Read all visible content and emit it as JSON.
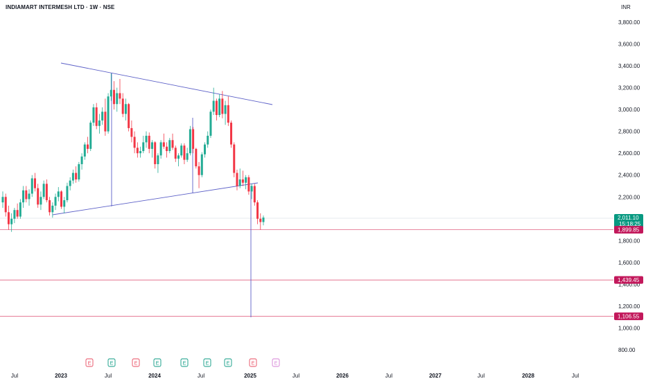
{
  "header": {
    "title": "INDIAMART INTERMESH LTD · 1W · NSE",
    "currency": "INR"
  },
  "colors": {
    "up": "#22ab94",
    "down": "#f23645",
    "line": "#5b5fc7",
    "hline": "#e06080",
    "badgeRed": "#c2185b",
    "badgeGreen": "#089981",
    "earn": "#e84a5f",
    "earnGreen": "#089981",
    "earnFuture": "#d47fd6"
  },
  "chart_data": {
    "type": "candlestick",
    "y_axis": {
      "min": 800,
      "max": 3800,
      "ticks": [
        "3,800.00",
        "3,600.00",
        "3,400.00",
        "3,200.00",
        "3,000.00",
        "2,800.00",
        "2,600.00",
        "2,400.00",
        "2,200.00",
        "2,000.00",
        "1,800.00",
        "1,600.00",
        "1,400.00",
        "1,200.00",
        "1,000.00",
        "800.00"
      ]
    },
    "x_axis": {
      "ticks": [
        {
          "label": "Jul",
          "year": false
        },
        {
          "label": "2023",
          "year": true
        },
        {
          "label": "Jul",
          "year": false
        },
        {
          "label": "2024",
          "year": true
        },
        {
          "label": "Jul",
          "year": false
        },
        {
          "label": "2025",
          "year": true
        },
        {
          "label": "Jul",
          "year": false
        },
        {
          "label": "2026",
          "year": true
        },
        {
          "label": "Jul",
          "year": false
        },
        {
          "label": "2027",
          "year": true
        },
        {
          "label": "Jul",
          "year": false
        },
        {
          "label": "2028",
          "year": true
        },
        {
          "label": "Jul",
          "year": false
        }
      ]
    },
    "price_labels": {
      "last": {
        "value": "2,011.10",
        "countdown": "15:18:25"
      },
      "levels": [
        "1,899.85",
        "1,439.45",
        "1,106.55"
      ]
    },
    "earnings_markers": [
      "E",
      "E",
      "E",
      "E",
      "E",
      "E",
      "E",
      "E",
      "E"
    ],
    "candles": [
      [
        2150,
        2250,
        2100,
        2200
      ],
      [
        2200,
        2230,
        2020,
        2060
      ],
      [
        2060,
        2120,
        1900,
        1950
      ],
      [
        1950,
        2050,
        1880,
        2000
      ],
      [
        2000,
        2100,
        1960,
        2080
      ],
      [
        2080,
        2140,
        2000,
        2020
      ],
      [
        2020,
        2180,
        2000,
        2150
      ],
      [
        2150,
        2300,
        2100,
        2260
      ],
      [
        2260,
        2300,
        2150,
        2180
      ],
      [
        2180,
        2270,
        2120,
        2230
      ],
      [
        2230,
        2400,
        2200,
        2370
      ],
      [
        2370,
        2420,
        2250,
        2280
      ],
      [
        2280,
        2320,
        2100,
        2130
      ],
      [
        2130,
        2250,
        2080,
        2200
      ],
      [
        2200,
        2350,
        2180,
        2320
      ],
      [
        2320,
        2360,
        2150,
        2170
      ],
      [
        2170,
        2200,
        2030,
        2060
      ],
      [
        2060,
        2150,
        2010,
        2120
      ],
      [
        2120,
        2230,
        2080,
        2200
      ],
      [
        2200,
        2290,
        2160,
        2250
      ],
      [
        2250,
        2260,
        2090,
        2110
      ],
      [
        2110,
        2200,
        2050,
        2170
      ],
      [
        2170,
        2330,
        2150,
        2300
      ],
      [
        2300,
        2380,
        2260,
        2350
      ],
      [
        2350,
        2450,
        2320,
        2420
      ],
      [
        2420,
        2480,
        2330,
        2360
      ],
      [
        2360,
        2520,
        2340,
        2500
      ],
      [
        2500,
        2600,
        2450,
        2570
      ],
      [
        2570,
        2700,
        2540,
        2680
      ],
      [
        2680,
        2750,
        2600,
        2640
      ],
      [
        2640,
        2900,
        2620,
        2880
      ],
      [
        2880,
        3050,
        2850,
        3020
      ],
      [
        3020,
        3060,
        2820,
        2850
      ],
      [
        2850,
        2960,
        2780,
        2900
      ],
      [
        2900,
        3020,
        2860,
        2980
      ],
      [
        2980,
        3100,
        2760,
        2800
      ],
      [
        2800,
        3150,
        2780,
        3120
      ],
      [
        3120,
        3330,
        3080,
        3180
      ],
      [
        3180,
        3260,
        3000,
        3050
      ],
      [
        3050,
        3200,
        2980,
        3150
      ],
      [
        3150,
        3280,
        3050,
        3100
      ],
      [
        3100,
        3150,
        2930,
        2960
      ],
      [
        2960,
        3100,
        2900,
        3050
      ],
      [
        3050,
        3060,
        2800,
        2830
      ],
      [
        2830,
        2900,
        2700,
        2750
      ],
      [
        2750,
        2800,
        2600,
        2650
      ],
      [
        2650,
        2700,
        2560,
        2600
      ],
      [
        2600,
        2660,
        2560,
        2620
      ],
      [
        2620,
        2760,
        2600,
        2700
      ],
      [
        2700,
        2800,
        2650,
        2760
      ],
      [
        2760,
        2790,
        2600,
        2640
      ],
      [
        2640,
        2720,
        2560,
        2700
      ],
      [
        2700,
        2710,
        2460,
        2500
      ],
      [
        2500,
        2600,
        2420,
        2580
      ],
      [
        2580,
        2720,
        2550,
        2700
      ],
      [
        2700,
        2780,
        2640,
        2660
      ],
      [
        2660,
        2700,
        2560,
        2620
      ],
      [
        2620,
        2740,
        2600,
        2720
      ],
      [
        2720,
        2780,
        2630,
        2650
      ],
      [
        2650,
        2670,
        2520,
        2550
      ],
      [
        2550,
        2600,
        2480,
        2580
      ],
      [
        2580,
        2690,
        2560,
        2670
      ],
      [
        2670,
        2690,
        2500,
        2540
      ],
      [
        2540,
        2650,
        2520,
        2600
      ],
      [
        2600,
        2850,
        2580,
        2820
      ],
      [
        2820,
        2840,
        2600,
        2640
      ],
      [
        2640,
        2650,
        2460,
        2480
      ],
      [
        2480,
        2520,
        2280,
        2400
      ],
      [
        2400,
        2610,
        2380,
        2590
      ],
      [
        2590,
        2700,
        2560,
        2680
      ],
      [
        2680,
        2800,
        2650,
        2760
      ],
      [
        2760,
        3000,
        2740,
        2980
      ],
      [
        2980,
        3200,
        2950,
        3080
      ],
      [
        3080,
        3100,
        2900,
        2950
      ],
      [
        2950,
        3140,
        2930,
        3100
      ],
      [
        3100,
        3170,
        2920,
        2960
      ],
      [
        2960,
        3080,
        2860,
        3040
      ],
      [
        3040,
        3120,
        2850,
        2880
      ],
      [
        2880,
        2900,
        2650,
        2680
      ],
      [
        2680,
        2700,
        2380,
        2420
      ],
      [
        2420,
        2450,
        2260,
        2300
      ],
      [
        2300,
        2460,
        2280,
        2360
      ],
      [
        2360,
        2440,
        2300,
        2330
      ],
      [
        2330,
        2400,
        2270,
        2380
      ],
      [
        2380,
        2400,
        2220,
        2250
      ],
      [
        2250,
        2320,
        2180,
        2300
      ],
      [
        2300,
        2320,
        2120,
        2150
      ],
      [
        2150,
        2170,
        1950,
        2000
      ],
      [
        2000,
        2050,
        1900,
        1970
      ],
      [
        1970,
        2030,
        1940,
        2011
      ]
    ]
  }
}
